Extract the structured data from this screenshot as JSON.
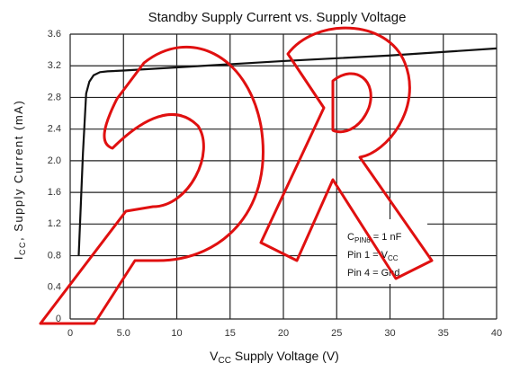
{
  "chart_data": {
    "type": "line",
    "title": "Standby Supply Current vs. Supply Voltage",
    "x_label": {
      "main": "V",
      "sub": "CC",
      "rest": " Supply Voltage (V)"
    },
    "y_label": {
      "main": "I",
      "sub": "CC",
      "rest": ", Supply Current (mA)"
    },
    "annotations": [
      {
        "main": "C",
        "sub": "PIN6",
        "rest": " = 1 nF"
      },
      {
        "main": "Pin 1 = V",
        "sub": "CC",
        "rest": ""
      },
      {
        "main": "Pin 4 = Gnd"
      }
    ],
    "x": [
      0.8,
      1.2,
      1.5,
      1.8,
      2.2,
      2.8,
      3.5,
      5,
      10,
      20,
      30,
      40
    ],
    "series": [
      {
        "color": "#111111",
        "values": [
          0.8,
          2.1,
          2.85,
          3.0,
          3.08,
          3.12,
          3.13,
          3.14,
          3.18,
          3.26,
          3.33,
          3.42
        ]
      }
    ],
    "xlim": [
      0,
      40
    ],
    "xticks": [
      0,
      {
        "value": 5,
        "label": "5.0"
      },
      10,
      15,
      20,
      25,
      30,
      35,
      40
    ],
    "ylim": [
      0,
      3.6
    ],
    "yticks": [
      0,
      0.4,
      0.8,
      1.2,
      1.6,
      {
        "value": 2,
        "label": "2.0"
      },
      2.4,
      2.8,
      3.2,
      3.6
    ],
    "grid": true
  }
}
